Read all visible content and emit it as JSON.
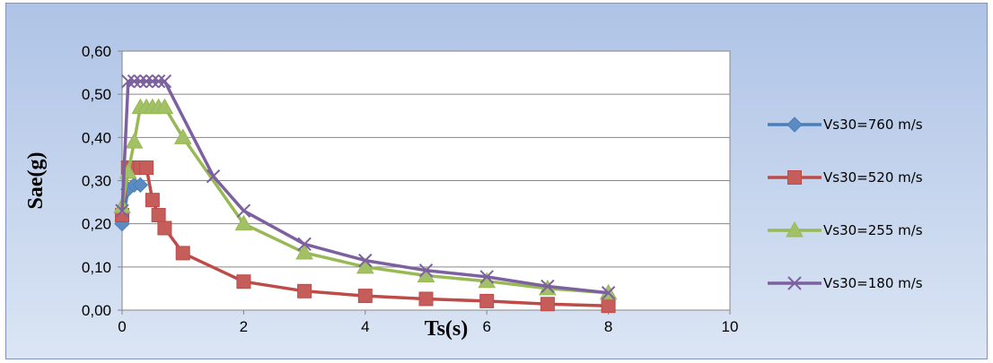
{
  "chart_data": {
    "type": "line",
    "title": "",
    "xlabel": "Ts(s)",
    "ylabel": "Sae(g)",
    "xlim": [
      0,
      10
    ],
    "ylim": [
      0,
      0.6
    ],
    "x_ticks": [
      "0",
      "2",
      "4",
      "6",
      "8",
      "10"
    ],
    "y_ticks": [
      "0,00",
      "0,10",
      "0,20",
      "0,30",
      "0,40",
      "0,50",
      "0,60"
    ],
    "grid": "horizontal",
    "legend_position": "right",
    "series": [
      {
        "name": "Vs30=760 m/s",
        "color": "#4a7ebb",
        "marker": "diamond",
        "x": [
          0.0,
          0.1,
          0.2,
          0.3
        ],
        "y": [
          0.2,
          0.28,
          0.29,
          0.29
        ]
      },
      {
        "name": "Vs30=520 m/s",
        "color": "#be4b48",
        "marker": "square",
        "x": [
          0.0,
          0.1,
          0.2,
          0.3,
          0.4,
          0.5,
          0.6,
          0.7,
          1.0,
          2.0,
          3.0,
          4.0,
          5.0,
          6.0,
          7.0,
          8.0
        ],
        "y": [
          0.22,
          0.33,
          0.33,
          0.33,
          0.33,
          0.255,
          0.22,
          0.19,
          0.132,
          0.066,
          0.044,
          0.033,
          0.026,
          0.021,
          0.014,
          0.01
        ]
      },
      {
        "name": "Vs30=255 m/s",
        "color": "#98b954",
        "marker": "triangle",
        "x": [
          0.0,
          0.1,
          0.2,
          0.3,
          0.4,
          0.5,
          0.6,
          0.7,
          1.0,
          2.0,
          3.0,
          4.0,
          5.0,
          6.0,
          7.0,
          8.0
        ],
        "y": [
          0.24,
          0.32,
          0.39,
          0.47,
          0.47,
          0.47,
          0.47,
          0.47,
          0.4,
          0.2,
          0.133,
          0.1,
          0.08,
          0.067,
          0.05,
          0.04
        ]
      },
      {
        "name": "Vs30=180 m/s",
        "color": "#7d60a0",
        "marker": "x",
        "x": [
          0.0,
          0.1,
          0.2,
          0.3,
          0.4,
          0.5,
          0.6,
          0.7,
          1.5,
          2.0,
          3.0,
          4.0,
          5.0,
          6.0,
          7.0,
          8.0
        ],
        "y": [
          0.23,
          0.53,
          0.53,
          0.53,
          0.53,
          0.53,
          0.53,
          0.53,
          0.31,
          0.23,
          0.153,
          0.115,
          0.092,
          0.077,
          0.055,
          0.04
        ]
      }
    ]
  }
}
